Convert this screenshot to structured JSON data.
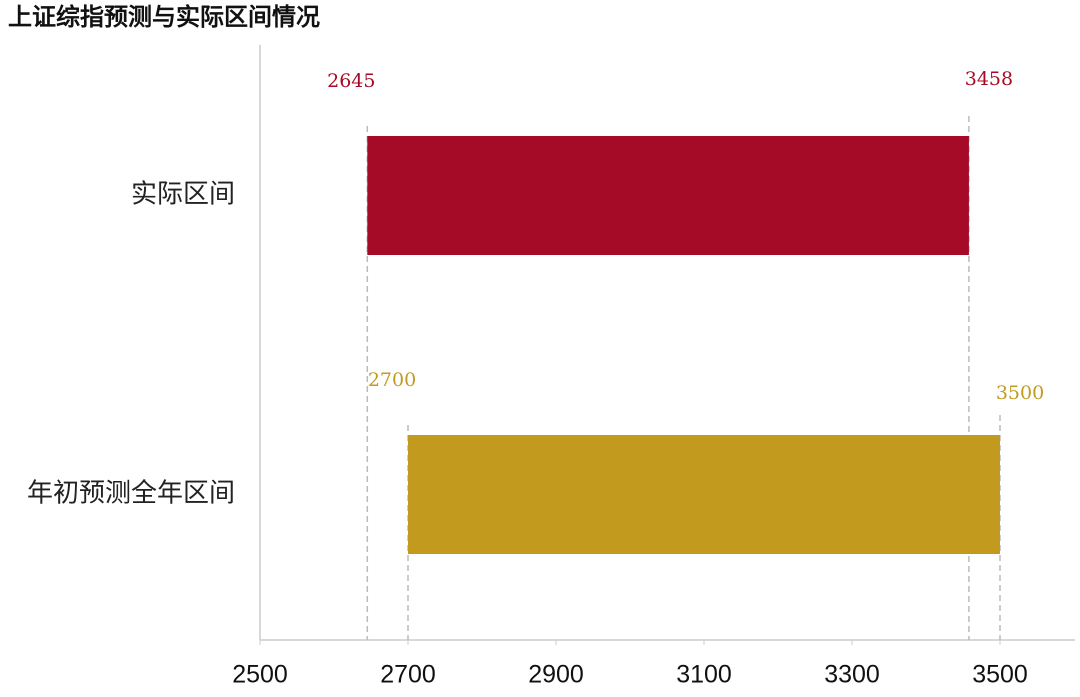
{
  "chart_data": {
    "type": "range-bar",
    "title": "上证综指预测与实际区间情况",
    "categories": [
      "实际区间",
      "年初预测全年区间"
    ],
    "low": [
      2645,
      2700
    ],
    "high": [
      3458,
      3500
    ],
    "colors": [
      "#a50a26",
      "#c19a1e"
    ],
    "xlim": [
      2500,
      3600
    ],
    "xticks": [
      2500,
      2700,
      2900,
      3100,
      3300,
      3500
    ]
  }
}
